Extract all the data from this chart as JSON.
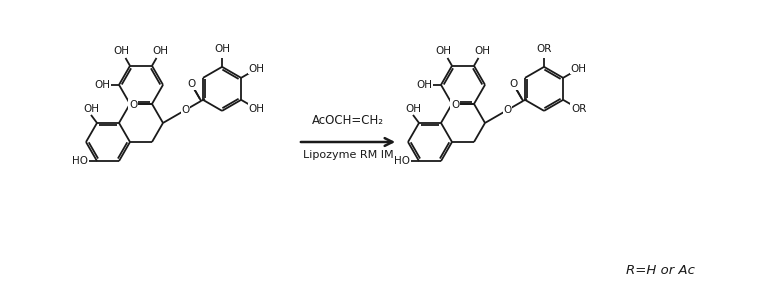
{
  "background_color": "#ffffff",
  "line_color": "#1a1a1a",
  "arrow_text_line1": "AcOCH=CH₂",
  "arrow_text_line2": "Lipozyme RM IM",
  "r_label": "R=H or Ac",
  "figsize": [
    7.68,
    3.0
  ],
  "dpi": 100
}
